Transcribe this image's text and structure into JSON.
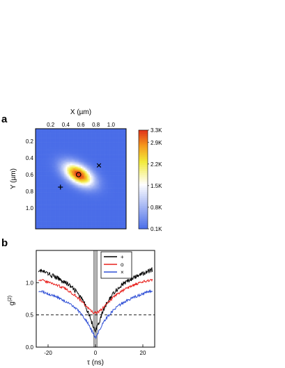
{
  "chart_data": [
    {
      "panel_label": "a",
      "type": "heatmap",
      "xlabel": "X (µm)",
      "ylabel": "Y (µm)",
      "xlim": [
        0.0,
        1.2
      ],
      "ylim": [
        0.05,
        1.25
      ],
      "x_ticks": [
        "0.2",
        "0.4",
        "0.6",
        "0.8",
        "1.0"
      ],
      "x_tick_values": [
        0.2,
        0.4,
        0.6,
        0.8,
        1.0
      ],
      "y_ticks": [
        "0.2",
        "0.4",
        "0.6",
        "0.8",
        "1.0"
      ],
      "y_tick_values": [
        0.2,
        0.4,
        0.6,
        0.8,
        1.0
      ],
      "colorbar": {
        "ticks": [
          "3.3K",
          "2.9K",
          "2.2K",
          "1.5K",
          "0.8K",
          "0.1K"
        ],
        "tick_values": [
          3.3,
          2.9,
          2.2,
          1.5,
          0.8,
          0.1
        ],
        "range": [
          0.1,
          3.3
        ],
        "unit_scale": "K"
      },
      "spot": {
        "center": [
          0.57,
          0.6
        ],
        "semi_axes": [
          0.21,
          0.11
        ],
        "rotation_deg": -27,
        "peak": 3.3,
        "background": 0.1
      },
      "markers": [
        {
          "symbol": "+",
          "x": 0.33,
          "y": 0.75
        },
        {
          "symbol": "o",
          "x": 0.57,
          "y": 0.6
        },
        {
          "symbol": "×",
          "x": 0.84,
          "y": 0.49
        }
      ],
      "colors": {
        "low": "#4a6de8",
        "mid": "#ffffff",
        "yellow": "#f2ea3a",
        "orange": "#f59a1e",
        "high": "#e0321a"
      }
    },
    {
      "panel_label": "b",
      "type": "line",
      "xlabel": "τ (ns)",
      "ylabel": "g",
      "ylabel_superscript": "(2)",
      "xlim": [
        -25,
        25
      ],
      "ylim": [
        0.0,
        1.5
      ],
      "x_ticks": [
        "-20",
        "0",
        "20"
      ],
      "x_tick_values": [
        -20,
        0,
        20
      ],
      "y_ticks": [
        "0.0",
        "0.5",
        "1.0"
      ],
      "y_tick_values": [
        0.0,
        0.5,
        1.0
      ],
      "reference_line": 0.5,
      "shaded_band": [
        -0.8,
        0.8
      ],
      "legend": {
        "placement": "top-center",
        "entries": [
          "+",
          "o",
          "×"
        ]
      },
      "series": [
        {
          "name": "+",
          "color": "#000000",
          "x": [
            -24,
            -20,
            -16,
            -12,
            -8,
            -5,
            -3,
            -1.5,
            -0.5,
            0,
            0.5,
            1.5,
            3,
            5,
            8,
            12,
            16,
            20,
            24
          ],
          "values": [
            1.2,
            1.14,
            1.07,
            0.99,
            0.86,
            0.7,
            0.54,
            0.38,
            0.3,
            0.26,
            0.3,
            0.38,
            0.54,
            0.7,
            0.86,
            0.99,
            1.07,
            1.14,
            1.2
          ]
        },
        {
          "name": "o",
          "color": "#e8201c",
          "x": [
            -24,
            -20,
            -16,
            -12,
            -8,
            -5,
            -3,
            -1.5,
            -0.5,
            0,
            0.5,
            1.5,
            3,
            5,
            8,
            12,
            16,
            20,
            24
          ],
          "values": [
            1.05,
            1.01,
            0.96,
            0.89,
            0.79,
            0.68,
            0.6,
            0.55,
            0.53,
            0.53,
            0.53,
            0.55,
            0.6,
            0.68,
            0.79,
            0.89,
            0.96,
            1.01,
            1.05
          ]
        },
        {
          "name": "×",
          "color": "#2f4fd6",
          "x": [
            -24,
            -20,
            -16,
            -12,
            -8,
            -5,
            -3,
            -1.5,
            -0.5,
            0,
            0.5,
            1.5,
            3,
            5,
            8,
            12,
            16,
            20,
            24
          ],
          "values": [
            0.88,
            0.83,
            0.77,
            0.7,
            0.59,
            0.47,
            0.36,
            0.25,
            0.18,
            0.14,
            0.18,
            0.25,
            0.36,
            0.47,
            0.59,
            0.7,
            0.77,
            0.83,
            0.88
          ]
        }
      ]
    }
  ]
}
